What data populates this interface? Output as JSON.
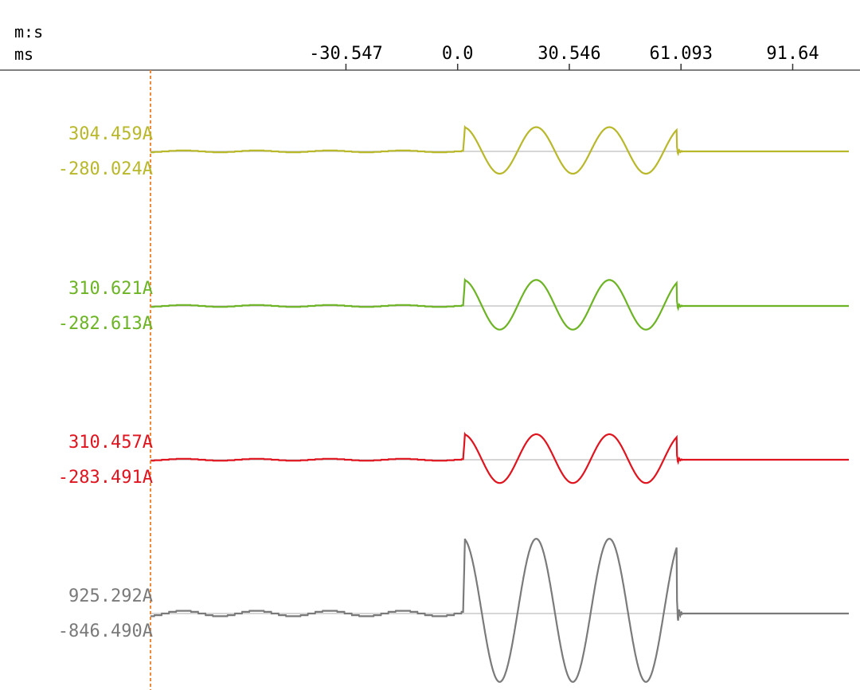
{
  "header": {
    "unit_top": "m:s",
    "unit_bottom": "ms"
  },
  "chart_data": {
    "type": "line",
    "x_unit": "ms",
    "x_ticks": [
      "-30.547",
      "0.0",
      "30.546",
      "61.093",
      "91.64"
    ],
    "x_tick_values": [
      -30.547,
      0.0,
      30.546,
      61.093,
      91.64
    ],
    "xlim": [
      -84,
      107
    ],
    "channels": [
      {
        "max_label": "304.459A",
        "min_label": "-280.024A",
        "max": 304.459,
        "min": -280.024,
        "color": "#b8b82a",
        "fault_start_ms": 1.5,
        "fault_end_ms": 60.0,
        "prefault_amp_ratio": 0.04
      },
      {
        "max_label": "310.621A",
        "min_label": "-282.613A",
        "max": 310.621,
        "min": -282.613,
        "color": "#6cb424",
        "fault_start_ms": 1.5,
        "fault_end_ms": 60.0,
        "prefault_amp_ratio": 0.04
      },
      {
        "max_label": "310.457A",
        "min_label": "-283.491A",
        "max": 310.457,
        "min": -283.491,
        "color": "#e0141e",
        "fault_start_ms": 1.5,
        "fault_end_ms": 60.0,
        "prefault_amp_ratio": 0.04
      },
      {
        "max_label": "925.292A",
        "min_label": "-846.490A",
        "max": 925.292,
        "min": -846.49,
        "color": "#7a7a7a",
        "fault_start_ms": 1.5,
        "fault_end_ms": 60.0,
        "prefault_amp_ratio": 0.04
      }
    ]
  }
}
